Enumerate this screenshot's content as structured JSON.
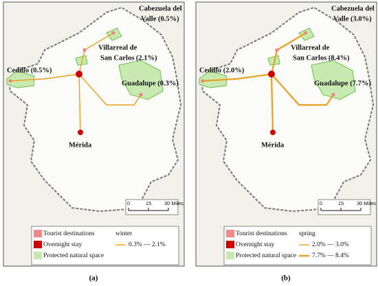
{
  "panels": [
    {
      "caption": "(a)",
      "places": [
        {
          "lines": [
            "Cabezuela del",
            "Valle (0.5%)"
          ]
        },
        {
          "lines": [
            "Villarreal de",
            "San Carlos (2.1%)"
          ]
        },
        {
          "lines": [
            "Cedillo (0.5%)"
          ]
        },
        {
          "lines": [
            "Guadalupe (0.3%)"
          ]
        },
        {
          "lines": [
            "Mérida"
          ]
        }
      ],
      "legend": {
        "items": [
          "Tourist destinations",
          "Overnight stay",
          "Protected natural space"
        ],
        "season": "winter",
        "ranges": [
          "0.3% — 2.1%"
        ]
      },
      "scale": [
        "0",
        "15",
        "30 Miles"
      ]
    },
    {
      "caption": "(b)",
      "places": [
        {
          "lines": [
            "Cabezuela del",
            "Valle (3.0%)"
          ]
        },
        {
          "lines": [
            "Villarreal de",
            "San Carlos (8.4%)"
          ]
        },
        {
          "lines": [
            "Cedillo (2.0%)"
          ]
        },
        {
          "lines": [
            "Guadalupe (7.7%)"
          ]
        },
        {
          "lines": [
            "Mérida"
          ]
        }
      ],
      "legend": {
        "items": [
          "Tourist destinations",
          "Overnight stay",
          "Protected natural space"
        ],
        "season": "spring",
        "ranges": [
          "2.0% — 3.0%",
          "7.7% — 8.4%"
        ]
      },
      "scale": [
        "0",
        "15",
        "30 Miles"
      ]
    }
  ]
}
